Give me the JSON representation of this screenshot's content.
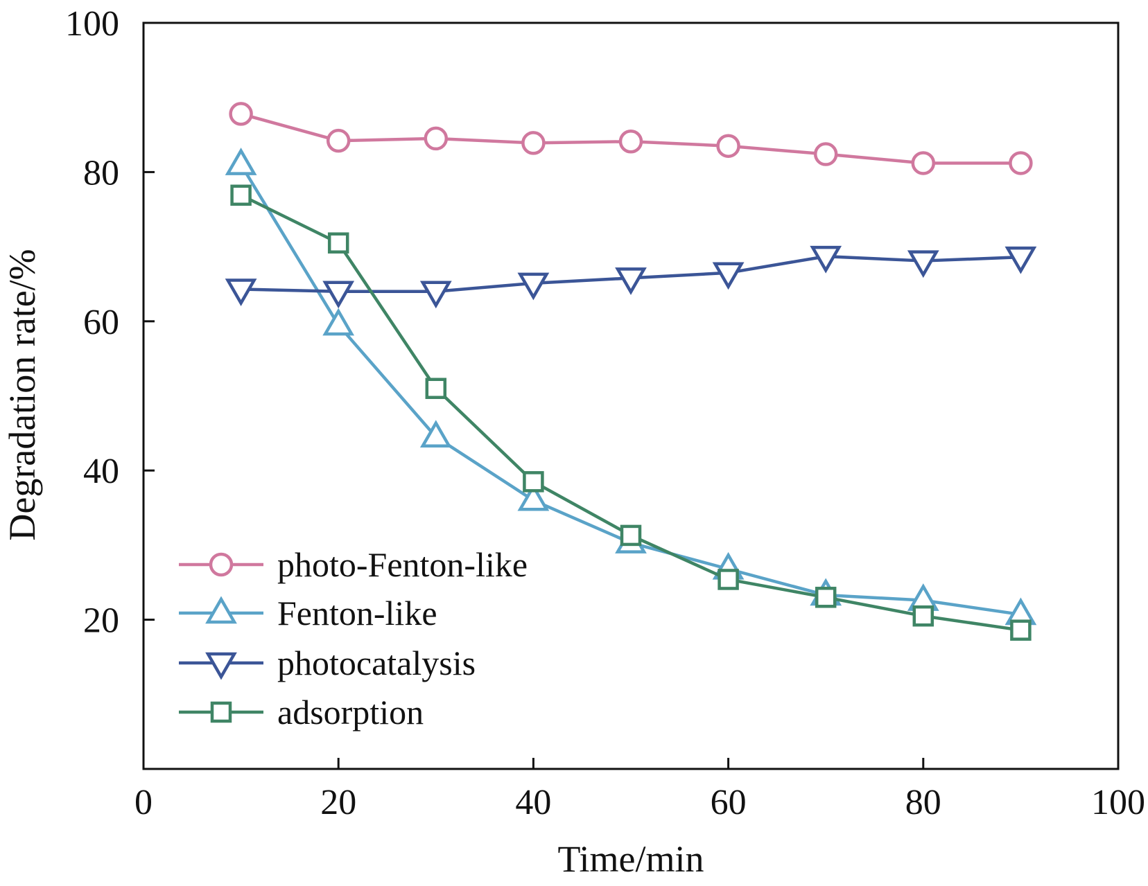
{
  "chart_data": {
    "type": "line",
    "title": "",
    "xlabel": "Time/min",
    "ylabel": "Degradation rate/%",
    "xlim": [
      0,
      100
    ],
    "ylim": [
      0,
      100
    ],
    "xticks": [
      0,
      20,
      40,
      60,
      80,
      100
    ],
    "yticks": [
      20,
      40,
      60,
      80,
      100
    ],
    "x_tick_labels": [
      "0",
      "20",
      "40",
      "60",
      "80",
      "100"
    ],
    "y_tick_labels": [
      "20",
      "40",
      "60",
      "80",
      "100"
    ],
    "grid": false,
    "legend_position": "bottom-left",
    "x": [
      10,
      20,
      30,
      40,
      50,
      60,
      70,
      80,
      90
    ],
    "series": [
      {
        "name": "photo-Fenton-like",
        "marker": "circle",
        "color": "#d0789e",
        "values": [
          87.8,
          84.2,
          84.5,
          83.9,
          84.1,
          83.5,
          82.4,
          81.2,
          81.2
        ]
      },
      {
        "name": "Fenton-like",
        "marker": "triangle-up",
        "color": "#5aa3c8",
        "values": [
          81.0,
          59.5,
          44.5,
          36.0,
          30.3,
          26.8,
          23.3,
          22.6,
          20.7
        ]
      },
      {
        "name": "photocatalysis",
        "marker": "triangle-down",
        "color": "#3b5597",
        "values": [
          64.3,
          64.0,
          64.0,
          65.1,
          65.8,
          66.5,
          68.7,
          68.1,
          68.6
        ]
      },
      {
        "name": "adsorption",
        "marker": "square",
        "color": "#3f8565",
        "values": [
          76.9,
          70.5,
          51.0,
          38.5,
          31.3,
          25.4,
          23.0,
          20.5,
          18.6
        ]
      }
    ]
  }
}
